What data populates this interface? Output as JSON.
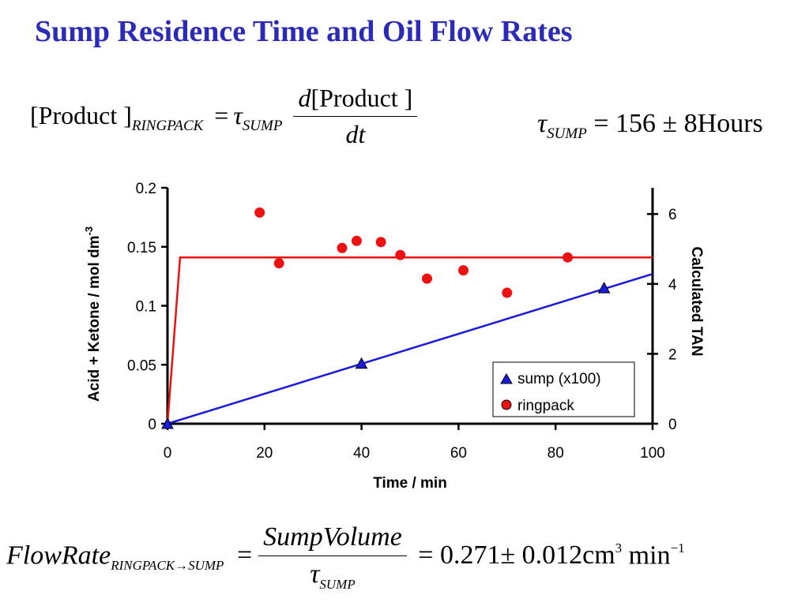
{
  "title": "Sump Residence Time and Oil Flow Rates",
  "eq1": {
    "lhs": "[Product ]",
    "lhs_sub": "RINGPACK",
    "equals": "=",
    "tau": "τ",
    "tau_sub": "SUMP",
    "num_d": "d",
    "num_rest": "[Product ]",
    "den": "dt"
  },
  "eq2": {
    "tau": "τ",
    "tau_sub": "SUMP",
    "rhs": "= 156 ± 8Hours"
  },
  "eq3": {
    "lhs": "FlowRate",
    "lhs_sub": "RINGPACK→SUMP",
    "equals": "=",
    "num": "SumpVolume",
    "den_tau": "τ",
    "den_sub": "SUMP",
    "rhs": "= 0.271± 0.012cm",
    "rhs_sup3": "3",
    "rhs_min": " min",
    "rhs_sup_neg1": "−1"
  },
  "chart_data": {
    "type": "scatter",
    "xlabel": "Time / min",
    "ylabel": "Acid + Ketone / mol dm-3",
    "ylabel_main": "Acid + Ketone / mol dm",
    "ylabel_sup": "-3",
    "y2label": "Calculated TAN",
    "xlim": [
      0,
      100
    ],
    "ylim": [
      0,
      0.2
    ],
    "y2lim": [
      0,
      6.75
    ],
    "x_ticks": [
      "0",
      "20",
      "40",
      "60",
      "80",
      "100"
    ],
    "y_ticks": [
      "0",
      "0.05",
      "0.1",
      "0.15",
      "0.2"
    ],
    "y2_ticks": [
      "0",
      "2",
      "4",
      "6"
    ],
    "grid": false,
    "legend_position": "bottom-right",
    "series": [
      {
        "name": "sump (x100)",
        "marker": "triangle",
        "color": "#1a1adf",
        "x": [
          0,
          40,
          90
        ],
        "y": [
          0,
          0.051,
          0.115
        ]
      },
      {
        "name": "ringpack",
        "marker": "circle",
        "color": "#ee1111",
        "x": [
          19,
          23,
          36,
          39,
          44,
          48,
          53.5,
          61,
          70,
          82.5
        ],
        "y": [
          0.179,
          0.136,
          0.149,
          0.155,
          0.154,
          0.143,
          0.123,
          0.13,
          0.111,
          0.141
        ]
      }
    ],
    "fit_lines": [
      {
        "series": "ringpack",
        "color": "#ee1111",
        "x": [
          0,
          2.6,
          100
        ],
        "y": [
          0,
          0.141,
          0.141
        ]
      },
      {
        "series": "sump (x100)",
        "color": "#1a1adf",
        "x": [
          0,
          100
        ],
        "y": [
          0,
          0.127
        ]
      }
    ]
  }
}
